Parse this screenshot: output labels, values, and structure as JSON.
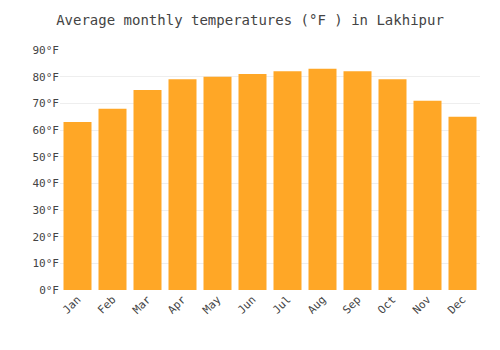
{
  "chart_data": {
    "type": "bar",
    "title": "Average monthly temperatures (°F ) in Lakhipur",
    "categories": [
      "Jan",
      "Feb",
      "Mar",
      "Apr",
      "May",
      "Jun",
      "Jul",
      "Aug",
      "Sep",
      "Oct",
      "Nov",
      "Dec"
    ],
    "values": [
      63,
      68,
      75,
      79,
      80,
      81,
      82,
      83,
      82,
      79,
      71,
      65
    ],
    "color": "#FFA726",
    "ylim": [
      0,
      90
    ],
    "yticks": [
      {
        "value": 0,
        "label": "0°F"
      },
      {
        "value": 10,
        "label": "10°F"
      },
      {
        "value": 20,
        "label": "20°F"
      },
      {
        "value": 30,
        "label": "30°F"
      },
      {
        "value": 40,
        "label": "40°F"
      },
      {
        "value": 50,
        "label": "50°F"
      },
      {
        "value": 60,
        "label": "60°F"
      },
      {
        "value": 70,
        "label": "70°F"
      },
      {
        "value": 80,
        "label": "80°F"
      },
      {
        "value": 90,
        "label": "90°F"
      }
    ],
    "grid": true
  }
}
